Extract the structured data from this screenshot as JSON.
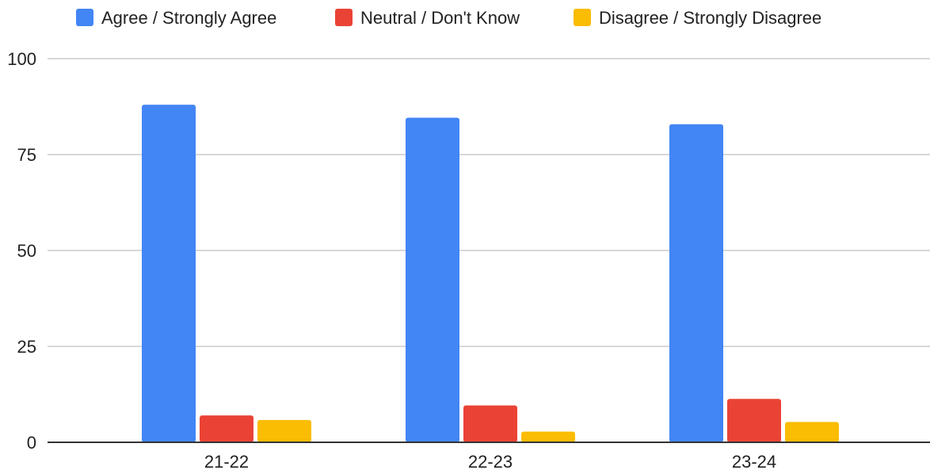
{
  "chart_data": {
    "type": "bar",
    "categories": [
      "21-22",
      "22-23",
      "23-24"
    ],
    "series": [
      {
        "name": "Agree / Strongly Agree",
        "color": "#4285f4",
        "values": [
          88,
          84.6,
          82.9
        ]
      },
      {
        "name": "Neutral / Don't Know",
        "color": "#ea4335",
        "values": [
          7,
          9.6,
          11.3
        ]
      },
      {
        "name": "Disagree / Strongly Disagree",
        "color": "#fbbc04",
        "values": [
          5.8,
          2.8,
          5.3
        ]
      }
    ],
    "ylim": [
      0,
      100
    ],
    "yticks": [
      0,
      25,
      50,
      75,
      100
    ],
    "grid": true,
    "legend_position": "top"
  }
}
